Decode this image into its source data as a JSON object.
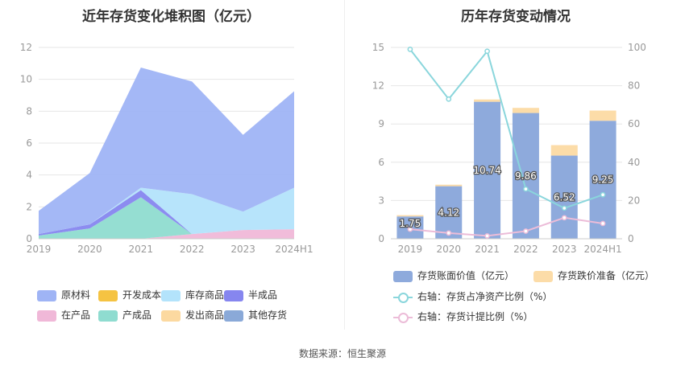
{
  "titles": {
    "left": "近年存货变化堆积图（亿元）",
    "right": "历年存货变动情况"
  },
  "source": "数据来源：恒生聚源",
  "chart_data": [
    {
      "type": "area",
      "title": "近年存货变化堆积图（亿元）",
      "categories": [
        "2019",
        "2020",
        "2021",
        "2022",
        "2023",
        "2024H1"
      ],
      "ylim": [
        0,
        12
      ],
      "yticks": [
        "0",
        "2",
        "4",
        "6",
        "8",
        "10",
        "12"
      ],
      "grid": true,
      "legend_position": "bottom",
      "series": [
        {
          "name": "在产品",
          "color": "#f0b8d8",
          "values": [
            0,
            0,
            0,
            0.3,
            0.55,
            0.6
          ]
        },
        {
          "name": "产成品",
          "color": "#8fdcd0",
          "values": [
            0.2,
            0.65,
            2.6,
            0,
            0,
            0
          ]
        },
        {
          "name": "半成品",
          "color": "#8686ef",
          "values": [
            0.1,
            0.25,
            0.45,
            0,
            0,
            0
          ]
        },
        {
          "name": "库存商品",
          "color": "#b3e3fb",
          "values": [
            0,
            0,
            0.15,
            2.5,
            1.15,
            2.6
          ]
        },
        {
          "name": "原材料",
          "color": "#9fb4f5",
          "values": [
            1.45,
            3.22,
            7.54,
            7.06,
            4.82,
            6.05
          ]
        },
        {
          "name": "开发成本",
          "color": "#f5c342",
          "values": [
            0,
            0,
            0,
            0,
            0,
            0
          ]
        },
        {
          "name": "发出商品",
          "color": "#fcd9a0",
          "values": [
            0,
            0,
            0,
            0,
            0,
            0
          ]
        },
        {
          "name": "其他存货",
          "color": "#8aa9d8",
          "values": [
            0,
            0,
            0,
            0,
            0,
            0
          ]
        }
      ]
    },
    {
      "type": "bar",
      "title": "历年存货变动情况",
      "categories": [
        "2019",
        "2020",
        "2021",
        "2022",
        "2023",
        "2024H1"
      ],
      "ylim": [
        0,
        15
      ],
      "yticks": [
        "0",
        "3",
        "6",
        "9",
        "12",
        "15"
      ],
      "y2lim": [
        0,
        100
      ],
      "y2ticks": [
        "0",
        "20",
        "40",
        "60",
        "80",
        "100"
      ],
      "grid": true,
      "legend_position": "bottom",
      "series": [
        {
          "name": "存货账面价值（亿元）",
          "color": "#8eaadc",
          "values": [
            1.75,
            4.12,
            10.74,
            9.86,
            6.52,
            9.25
          ],
          "labels": [
            "1.75",
            "4.12",
            "10.74",
            "9.86",
            "6.52",
            "9.25"
          ]
        },
        {
          "name": "存货跌价准备（亿元）",
          "color": "#fcdca8",
          "values": [
            0.1,
            0.12,
            0.18,
            0.4,
            0.82,
            0.8
          ]
        },
        {
          "name": "右轴：存货占净资产比例（%）",
          "color": "#8ad6dc",
          "axis": "right",
          "values": [
            99,
            73,
            98,
            26,
            16,
            23
          ]
        },
        {
          "name": "右轴：存货计提比例（%）",
          "color": "#ecbcd8",
          "axis": "right",
          "values": [
            5,
            3,
            1.5,
            4,
            11,
            8
          ]
        }
      ]
    }
  ]
}
